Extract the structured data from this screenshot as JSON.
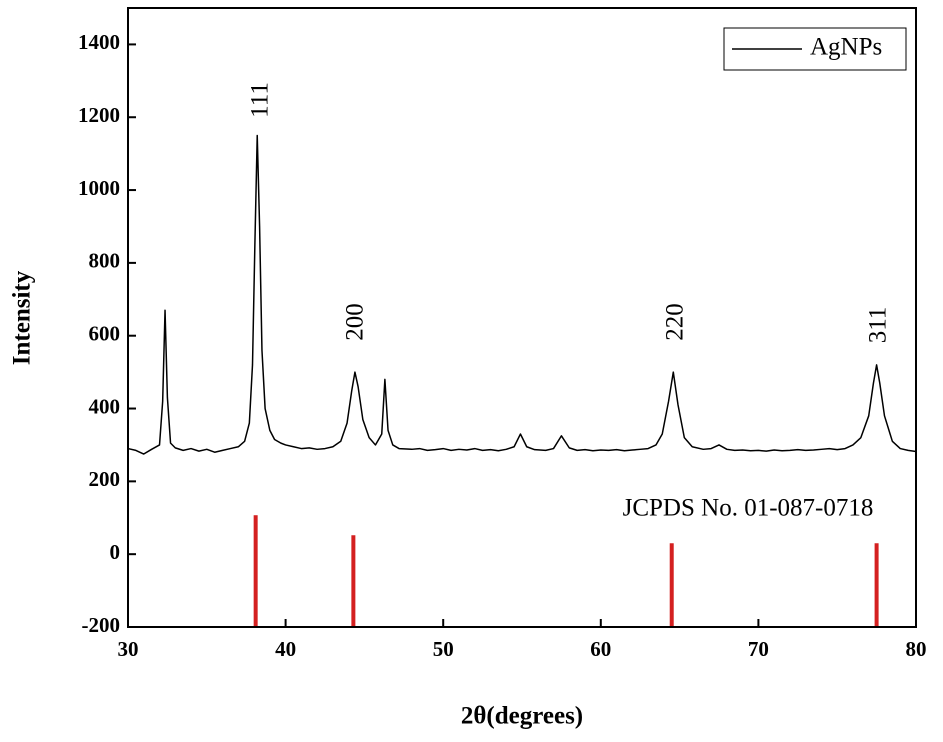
{
  "chart_data": {
    "type": "line",
    "x_label": "2θ(degrees)",
    "y_label": "Intensity",
    "xlim": [
      30,
      80
    ],
    "xticks": [
      30,
      40,
      50,
      60,
      70,
      80
    ],
    "ylim": [
      -200,
      1500
    ],
    "yticks": [
      -200,
      0,
      200,
      400,
      600,
      800,
      1000,
      1200,
      1400
    ],
    "legend": "upper right",
    "series": [
      {
        "name": "AgNPs",
        "color": "#000000",
        "x": [
          30,
          30.5,
          31,
          31.5,
          32,
          32.2,
          32.35,
          32.5,
          32.7,
          33,
          33.5,
          34,
          34.5,
          35,
          35.5,
          36,
          36.5,
          37,
          37.4,
          37.7,
          37.9,
          38.05,
          38.2,
          38.35,
          38.5,
          38.7,
          39,
          39.3,
          39.7,
          40,
          40.5,
          41,
          41.5,
          42,
          42.5,
          43,
          43.5,
          43.9,
          44.2,
          44.4,
          44.6,
          44.9,
          45.3,
          45.7,
          46.1,
          46.3,
          46.5,
          46.8,
          47.2,
          48,
          48.5,
          49,
          49.5,
          50,
          50.5,
          51,
          51.5,
          52,
          52.5,
          53,
          53.5,
          54,
          54.5,
          54.9,
          55.3,
          55.8,
          56.5,
          57,
          57.5,
          58,
          58.5,
          59,
          59.5,
          60,
          60.5,
          61,
          61.5,
          62,
          62.5,
          63,
          63.5,
          63.9,
          64.3,
          64.6,
          64.9,
          65.3,
          65.8,
          66.5,
          67,
          67.5,
          68,
          68.5,
          69,
          69.5,
          70,
          70.5,
          71,
          71.5,
          72,
          72.5,
          73,
          73.5,
          74,
          74.5,
          75,
          75.5,
          76,
          76.5,
          77,
          77.3,
          77.5,
          77.7,
          78,
          78.5,
          79,
          79.5,
          80
        ],
        "values": [
          290,
          285,
          275,
          288,
          300,
          420,
          670,
          430,
          305,
          292,
          285,
          290,
          283,
          288,
          280,
          285,
          290,
          295,
          310,
          360,
          520,
          850,
          1150,
          900,
          560,
          400,
          340,
          315,
          305,
          300,
          295,
          290,
          292,
          288,
          290,
          295,
          310,
          360,
          450,
          500,
          460,
          370,
          320,
          300,
          330,
          480,
          340,
          300,
          290,
          288,
          290,
          285,
          287,
          290,
          285,
          288,
          286,
          290,
          285,
          287,
          284,
          288,
          295,
          330,
          295,
          287,
          285,
          290,
          325,
          292,
          285,
          287,
          284,
          286,
          285,
          287,
          284,
          286,
          288,
          290,
          300,
          330,
          420,
          500,
          410,
          320,
          295,
          288,
          290,
          300,
          288,
          285,
          286,
          284,
          285,
          283,
          286,
          284,
          285,
          287,
          285,
          286,
          288,
          290,
          287,
          290,
          300,
          320,
          380,
          470,
          520,
          470,
          380,
          310,
          290,
          285,
          282
        ]
      }
    ],
    "reference": {
      "label": "JCPDS No. 01-087-0718",
      "color": "#d42020",
      "x": [
        38.1,
        44.3,
        64.5,
        77.5
      ],
      "values": [
        107,
        52,
        30,
        30
      ]
    },
    "peak_labels": [
      "111",
      "200",
      "220",
      "311"
    ]
  }
}
